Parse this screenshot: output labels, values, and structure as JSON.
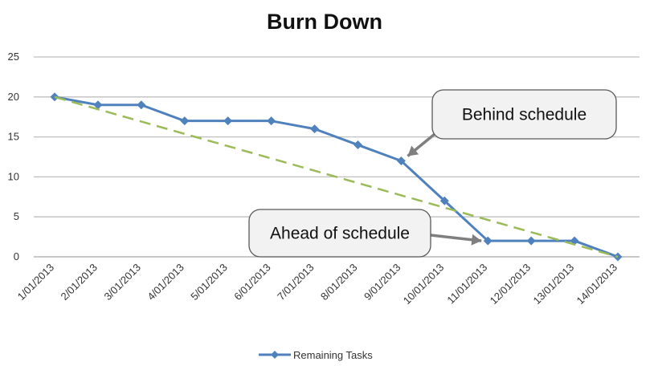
{
  "chart_data": {
    "type": "line",
    "title": "Burn Down",
    "xlabel": "",
    "ylabel": "",
    "ylim": [
      0,
      25
    ],
    "yticks": [
      0,
      5,
      10,
      15,
      20,
      25
    ],
    "grid": true,
    "legend_position": "bottom",
    "categories": [
      "1/01/2013",
      "2/01/2013",
      "3/01/2013",
      "4/01/2013",
      "5/01/2013",
      "6/01/2013",
      "7/01/2013",
      "8/01/2013",
      "9/01/2013",
      "10/01/2013",
      "11/01/2013",
      "12/01/2013",
      "13/01/2013",
      "14/01/2013"
    ],
    "series": [
      {
        "name": "Remaining Tasks",
        "values": [
          20,
          19,
          19,
          17,
          17,
          17,
          16,
          14,
          12,
          7,
          2,
          2,
          2,
          0
        ],
        "color": "#4f81bd",
        "marker": "diamond"
      },
      {
        "values": [
          20,
          18.46,
          16.92,
          15.38,
          13.85,
          12.31,
          10.77,
          9.23,
          7.69,
          6.15,
          4.62,
          3.08,
          1.54,
          0
        ],
        "color": "#9bbb59",
        "style": "dashed"
      }
    ],
    "annotations": [
      {
        "text": "Behind schedule",
        "points_to": {
          "category": "9/01/2013",
          "value": 12
        }
      },
      {
        "text": "Ahead of schedule",
        "points_to": {
          "category": "11/01/2013",
          "value": 2
        }
      }
    ]
  }
}
